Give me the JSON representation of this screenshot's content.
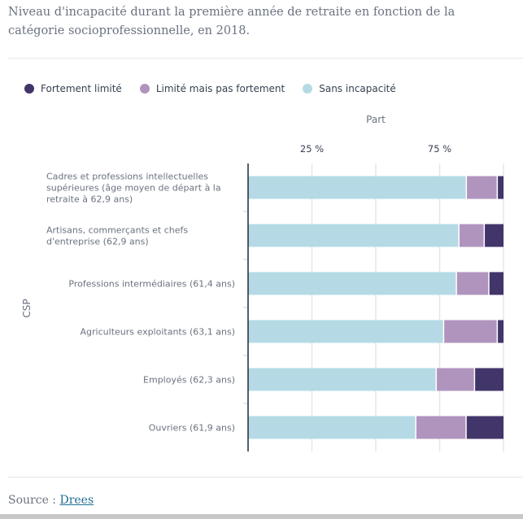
{
  "caption": "Niveau d'incapacité durant la première année de retraite en fonction de la catégorie socioprofessionnelle, en 2018.",
  "source": {
    "label": "Source :",
    "link_text": "Drees"
  },
  "chart_data": {
    "type": "bar",
    "orientation": "horizontal",
    "stacked": true,
    "title": "",
    "xlabel": "Part",
    "ylabel": "CSP",
    "xlim": [
      0,
      100
    ],
    "x_ticks": [
      25,
      75
    ],
    "x_tick_labels": [
      "25 %",
      "75 %"
    ],
    "gridlines_at": [
      0,
      25,
      50,
      75,
      100
    ],
    "grid": true,
    "legend_position": "top-left",
    "categories": [
      [
        "Cadres et professions intellectuelles",
        "supérieures (âge moyen de départ à la",
        "retraite à 62,9 ans)"
      ],
      [
        "Artisans, commerçants et chefs",
        "d'entreprise (62,9 ans)"
      ],
      [
        "Professions intermédiaires (61,4 ans)"
      ],
      [
        "Agriculteurs exploitants (63,1 ans)"
      ],
      [
        "Employés (62,3 ans)"
      ],
      [
        "Ouvriers (61,9 ans)"
      ]
    ],
    "series": [
      {
        "name": "Sans incapacité",
        "color": "#b5dae5",
        "values": [
          85.7,
          82.8,
          81.8,
          76.8,
          73.9,
          65.9
        ]
      },
      {
        "name": "Limité mais pas fortement",
        "color": "#b094be",
        "values": [
          12.1,
          9.9,
          12.7,
          21.0,
          15.0,
          19.7
        ]
      },
      {
        "name": "Fortement limité",
        "color": "#41356a",
        "values": [
          2.2,
          7.3,
          5.5,
          2.2,
          11.1,
          14.4
        ]
      }
    ],
    "legend": [
      {
        "name": "Fortement limité",
        "color": "#41356a"
      },
      {
        "name": "Limité mais pas fortement",
        "color": "#b094be"
      },
      {
        "name": "Sans incapacité",
        "color": "#b5dae5"
      }
    ]
  }
}
